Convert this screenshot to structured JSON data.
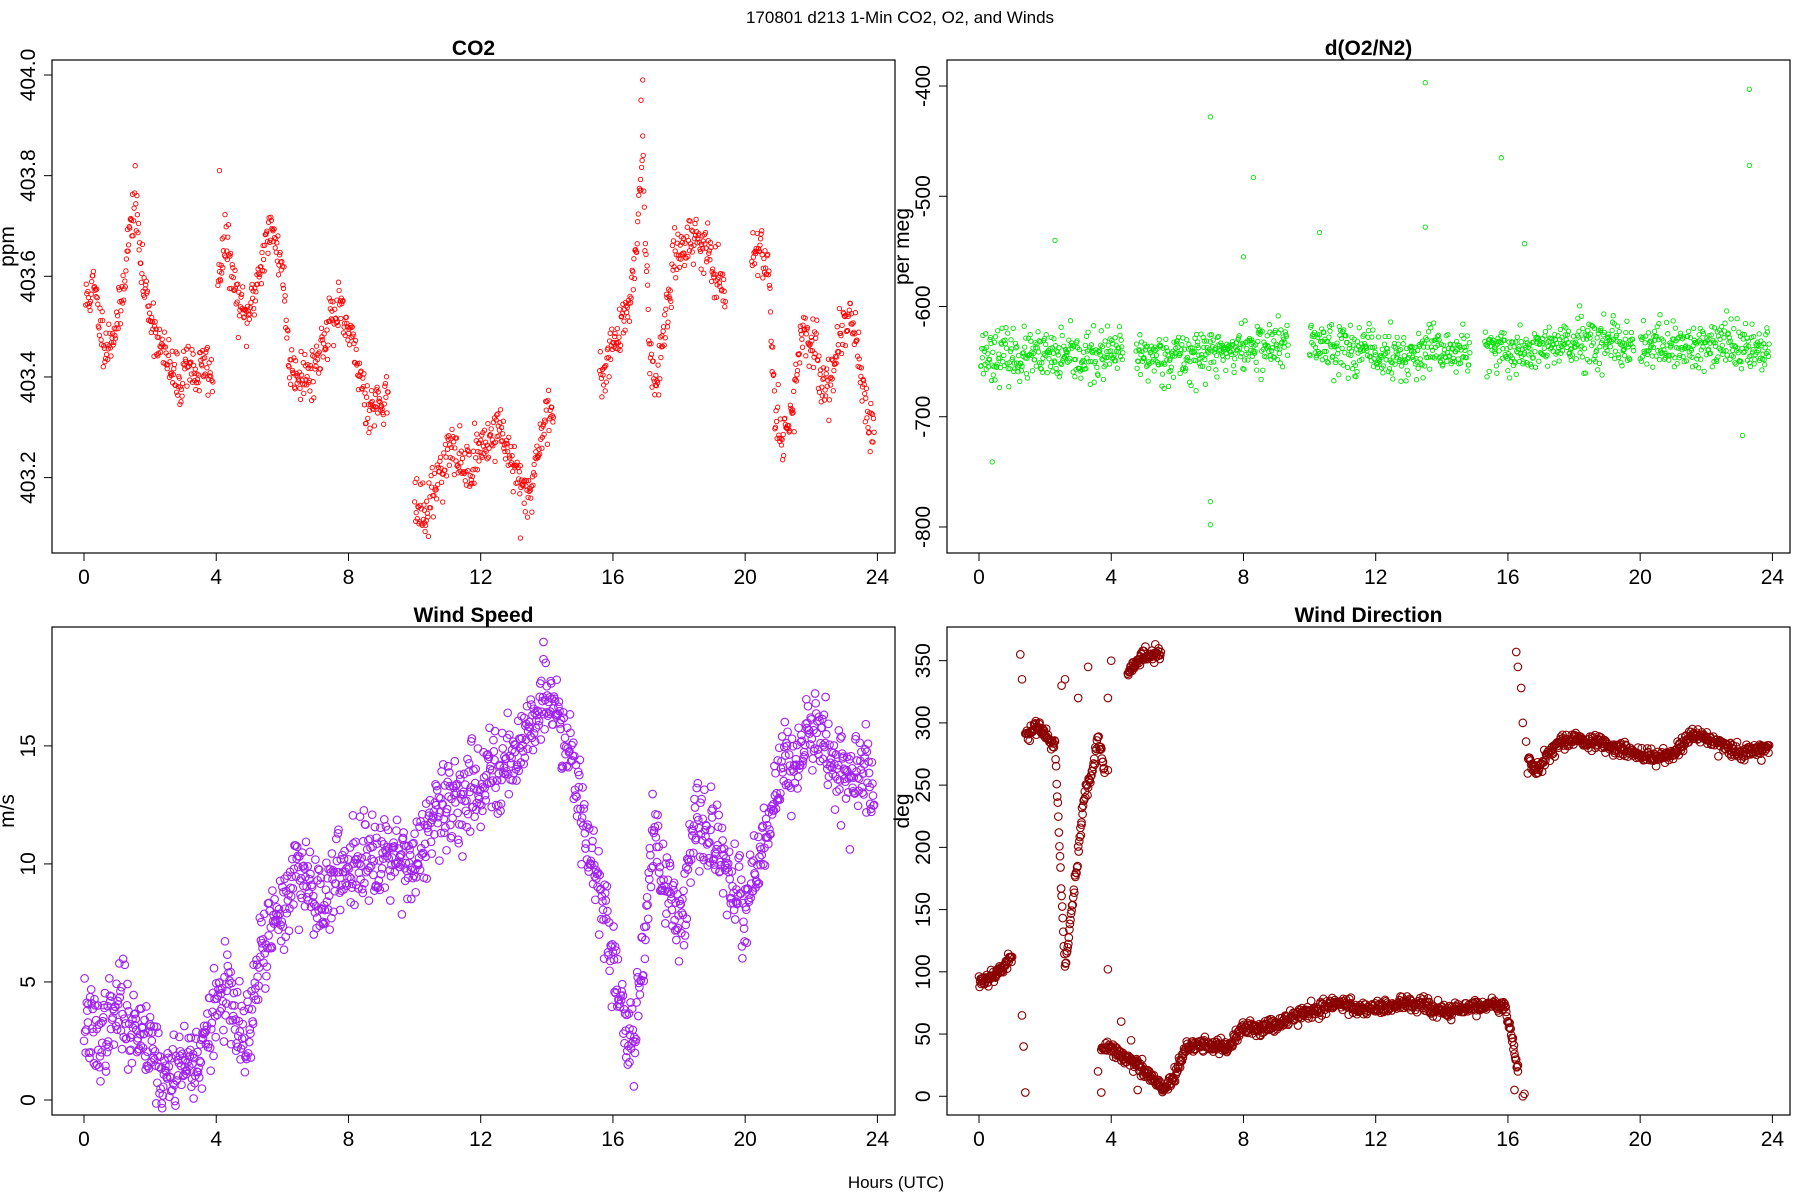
{
  "figure": {
    "suptitle": "170801   d213   1-Min CO2, O2, and Winds",
    "xlabel": "Hours (UTC)"
  },
  "chart_data": [
    {
      "id": "co2",
      "type": "scatter",
      "title": "CO2",
      "xlabel": "",
      "ylabel": "ppm",
      "xlim": [
        0,
        24
      ],
      "ylim": [
        403.08,
        404.0
      ],
      "xticks": [
        0,
        4,
        8,
        12,
        16,
        20,
        24
      ],
      "yticks": [
        403.2,
        403.4,
        403.6,
        403.8,
        404.0
      ],
      "ytick_labels": [
        "403.2",
        "403.4",
        "403.6",
        "403.8",
        "404.0"
      ],
      "color": "#ff0000",
      "marker_size": 2.2,
      "noise": 0.025,
      "seed": 11,
      "density": 60,
      "spikes": [
        [
          4.1,
          403.81
        ],
        [
          16.9,
          403.99
        ],
        [
          16.85,
          403.95
        ],
        [
          13.2,
          403.08
        ],
        [
          10.3,
          403.11
        ]
      ],
      "series": [
        {
          "x": [
            0.05,
            0.3,
            0.5,
            0.7,
            0.9,
            1.1,
            1.3,
            1.55,
            1.75,
            2.0,
            2.3,
            2.6,
            2.9,
            3.1,
            3.4,
            3.7,
            3.9
          ],
          "values": [
            403.55,
            403.58,
            403.5,
            403.46,
            403.49,
            403.53,
            403.65,
            403.76,
            403.6,
            403.53,
            403.46,
            403.42,
            403.38,
            403.44,
            403.4,
            403.43,
            403.39
          ]
        },
        {
          "x": [
            4.05,
            4.3,
            4.6,
            4.9,
            5.1,
            5.4,
            5.6,
            5.8,
            6.0,
            6.2,
            6.5,
            6.8,
            7.1,
            7.4,
            7.7,
            8.0,
            8.3,
            8.6,
            8.9,
            9.2
          ],
          "values": [
            403.6,
            403.67,
            403.56,
            403.51,
            403.55,
            403.64,
            403.69,
            403.67,
            403.62,
            403.43,
            403.41,
            403.4,
            403.44,
            403.51,
            403.53,
            403.49,
            403.42,
            403.34,
            403.35,
            403.37
          ]
        },
        {
          "x": [
            10.0,
            10.3,
            10.5,
            10.8,
            11.1,
            11.4,
            11.7,
            12.0,
            12.3,
            12.6,
            12.9,
            13.2,
            13.5,
            13.8,
            14.0,
            14.2
          ],
          "values": [
            403.15,
            403.12,
            403.16,
            403.22,
            403.26,
            403.23,
            403.22,
            403.26,
            403.28,
            403.3,
            403.24,
            403.18,
            403.17,
            403.28,
            403.33,
            403.32
          ]
        },
        {
          "x": [
            15.6,
            15.9,
            16.2,
            16.5,
            16.7,
            16.9,
            17.1,
            17.3,
            17.6,
            17.9,
            18.2,
            18.5,
            18.8,
            19.1,
            19.4
          ],
          "values": [
            403.38,
            403.46,
            403.48,
            403.55,
            403.66,
            403.85,
            403.45,
            403.38,
            403.52,
            403.64,
            403.67,
            403.68,
            403.66,
            403.6,
            403.55
          ]
        },
        {
          "x": [
            20.2,
            20.4,
            20.7,
            20.9,
            21.1,
            21.4,
            21.7,
            22.0,
            22.3,
            22.6,
            22.9,
            23.2,
            23.5,
            23.7,
            23.9
          ],
          "values": [
            403.64,
            403.66,
            403.62,
            403.35,
            403.28,
            403.32,
            403.47,
            403.48,
            403.4,
            403.38,
            403.5,
            403.53,
            403.42,
            403.32,
            403.29
          ]
        }
      ]
    },
    {
      "id": "o2",
      "type": "scatter",
      "title": "d(O2/N2)",
      "xlabel": "",
      "ylabel": "per meg",
      "xlim": [
        0,
        24
      ],
      "ylim": [
        -810,
        -390
      ],
      "xticks": [
        0,
        4,
        8,
        12,
        16,
        20,
        24
      ],
      "yticks": [
        -800,
        -700,
        -600,
        -500,
        -400
      ],
      "ytick_labels": [
        "-800",
        "-700",
        "-600",
        "-500",
        "-400"
      ],
      "color": "#00e000",
      "marker_size": 2.2,
      "noise": 11,
      "seed": 23,
      "density": 60,
      "spikes": [
        [
          0.4,
          -741
        ],
        [
          2.3,
          -540
        ],
        [
          7.0,
          -428
        ],
        [
          7.0,
          -777
        ],
        [
          7.0,
          -798
        ],
        [
          8.0,
          -555
        ],
        [
          8.3,
          -483
        ],
        [
          10.3,
          -533
        ],
        [
          13.5,
          -397
        ],
        [
          13.5,
          -528
        ],
        [
          15.8,
          -465
        ],
        [
          16.5,
          -543
        ],
        [
          23.3,
          -403
        ],
        [
          23.3,
          -472
        ],
        [
          23.1,
          -717
        ]
      ],
      "series": [
        {
          "x": [
            0.05,
            1.0,
            2.0,
            3.0,
            4.0,
            4.35
          ],
          "values": [
            -642,
            -645,
            -646,
            -647,
            -644,
            -642
          ]
        },
        {
          "x": [
            4.75,
            5.5,
            6.5,
            7.5,
            8.5,
            9.35
          ],
          "values": [
            -645,
            -645,
            -644,
            -640,
            -636,
            -635
          ]
        },
        {
          "x": [
            10.0,
            11.0,
            12.0,
            13.0,
            14.0,
            14.85
          ],
          "values": [
            -632,
            -636,
            -643,
            -646,
            -640,
            -642
          ]
        },
        {
          "x": [
            15.3,
            16.2,
            17.0,
            18.0,
            19.0,
            19.8
          ],
          "values": [
            -642,
            -640,
            -638,
            -634,
            -636,
            -640
          ]
        },
        {
          "x": [
            20.0,
            21.0,
            22.0,
            23.0,
            23.9
          ],
          "values": [
            -636,
            -637,
            -636,
            -636,
            -634
          ]
        }
      ]
    },
    {
      "id": "wspd",
      "type": "scatter",
      "title": "Wind Speed",
      "xlabel": "",
      "ylabel": "m/s",
      "xlim": [
        0,
        24
      ],
      "ylim": [
        0,
        19.4
      ],
      "xticks": [
        0,
        4,
        8,
        12,
        16,
        20,
        24
      ],
      "yticks": [
        0,
        5,
        10,
        15,
        20
      ],
      "ytick_labels": [
        "0",
        "5",
        "10",
        "15",
        "20"
      ],
      "color": "#a020f0",
      "marker_size": 3.8,
      "noise": 0.9,
      "seed": 37,
      "density": 60,
      "spikes": [
        [
          13.9,
          19.4
        ],
        [
          16.5,
          1.6
        ]
      ],
      "series": [
        {
          "x": [
            0.0,
            0.4,
            0.8,
            1.1,
            1.5,
            2.0,
            2.4,
            2.8,
            3.2,
            3.6,
            4.0,
            4.3,
            4.6,
            5.0,
            5.3,
            5.6,
            6.0,
            6.5,
            7.0,
            7.5,
            8.0,
            8.5,
            9.0,
            9.5,
            10.0,
            10.5,
            11.0,
            11.5,
            12.0,
            12.5,
            13.0,
            13.5,
            13.9,
            14.3,
            14.7,
            15.0,
            15.4,
            15.8,
            16.1,
            16.4,
            16.6,
            16.9,
            17.2,
            17.6,
            18.0,
            18.4,
            18.8,
            19.2,
            19.6,
            20.0,
            20.4,
            20.8,
            21.2,
            21.6,
            22.0,
            22.4,
            22.8,
            23.2,
            23.6,
            23.9
          ],
          "values": [
            3.5,
            2.5,
            3.3,
            4.0,
            3.0,
            2.8,
            0.7,
            1.5,
            1.6,
            2.0,
            4.0,
            4.8,
            3.0,
            2.5,
            6.0,
            7.0,
            8.0,
            10.0,
            8.5,
            9.0,
            10.0,
            10.5,
            10.5,
            10.5,
            10.0,
            11.5,
            12.5,
            13.0,
            13.5,
            14.0,
            14.5,
            16.0,
            17.0,
            16.5,
            15.0,
            13.0,
            10.0,
            7.5,
            5.0,
            3.0,
            2.5,
            6.0,
            11.5,
            9.0,
            7.5,
            11.0,
            11.5,
            10.5,
            9.0,
            8.0,
            10.0,
            12.0,
            14.5,
            14.0,
            16.0,
            15.5,
            14.0,
            13.5,
            14.0,
            12.5
          ]
        }
      ]
    },
    {
      "id": "wdir",
      "type": "scatter",
      "title": "Wind Direction",
      "xlabel": "",
      "ylabel": "deg",
      "xlim": [
        0,
        24
      ],
      "ylim": [
        -3,
        365
      ],
      "xticks": [
        0,
        4,
        8,
        12,
        16,
        20,
        24
      ],
      "yticks": [
        0,
        50,
        100,
        150,
        200,
        250,
        300,
        350
      ],
      "ytick_labels": [
        "0",
        "50",
        "100",
        "150",
        "200",
        "250",
        "300",
        "350"
      ],
      "color": "#8b0000",
      "marker_size": 3.8,
      "noise": 3,
      "seed": 53,
      "density": 60,
      "spikes": [
        [
          1.25,
          355
        ],
        [
          1.3,
          335
        ],
        [
          1.3,
          65
        ],
        [
          1.35,
          40
        ],
        [
          1.4,
          3
        ],
        [
          2.5,
          330
        ],
        [
          2.6,
          335
        ],
        [
          3.0,
          320
        ],
        [
          3.1,
          220
        ],
        [
          3.3,
          345
        ],
        [
          3.9,
          102
        ],
        [
          4.0,
          350
        ],
        [
          4.3,
          60
        ],
        [
          4.6,
          45
        ],
        [
          4.8,
          5
        ],
        [
          3.7,
          3
        ],
        [
          3.6,
          20
        ],
        [
          3.9,
          320
        ],
        [
          3.9,
          262
        ],
        [
          16.25,
          357
        ],
        [
          16.3,
          345
        ],
        [
          16.4,
          328
        ],
        [
          16.45,
          300
        ],
        [
          16.55,
          285
        ],
        [
          16.2,
          5
        ],
        [
          16.3,
          25
        ],
        [
          16.45,
          0
        ],
        [
          16.5,
          2
        ]
      ],
      "series": [
        {
          "x": [
            0.0,
            0.4,
            0.8,
            1.0
          ],
          "values": [
            92,
            97,
            105,
            112
          ]
        },
        {
          "x": [
            1.4,
            1.7,
            2.0,
            2.3,
            2.6,
            2.8,
            3.0,
            3.2,
            3.4,
            3.6,
            3.8
          ],
          "values": [
            290,
            298,
            290,
            283,
            100,
            150,
            195,
            245,
            258,
            290,
            260
          ]
        },
        {
          "x": [
            3.7,
            4.0,
            4.4,
            4.8,
            5.2,
            5.6,
            5.9,
            6.3,
            7.0,
            7.5,
            8.0,
            8.5,
            9.0,
            9.5,
            10.0,
            10.5,
            11.0,
            11.5,
            12.0,
            12.5,
            13.0,
            13.5,
            14.0,
            14.5,
            15.0,
            15.5,
            15.9,
            16.1,
            16.3
          ],
          "values": [
            38,
            40,
            30,
            25,
            15,
            5,
            15,
            40,
            42,
            38,
            55,
            55,
            58,
            65,
            68,
            72,
            75,
            70,
            72,
            72,
            75,
            72,
            68,
            70,
            72,
            73,
            75,
            50,
            20
          ]
        },
        {
          "x": [
            4.5,
            4.8,
            5.2,
            5.5
          ],
          "values": [
            340,
            350,
            355,
            357
          ]
        },
        {
          "x": [
            16.6,
            16.9,
            17.2,
            17.6,
            18.0,
            18.5,
            19.0,
            19.5,
            20.0,
            20.5,
            21.0,
            21.5,
            22.0,
            22.5,
            23.0,
            23.5,
            23.9
          ],
          "values": [
            268,
            262,
            275,
            285,
            288,
            285,
            282,
            278,
            275,
            272,
            275,
            290,
            288,
            282,
            275,
            278,
            282
          ]
        }
      ]
    }
  ]
}
